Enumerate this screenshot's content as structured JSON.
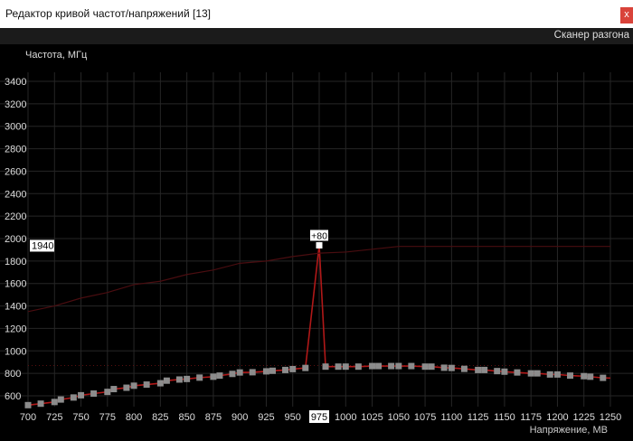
{
  "window": {
    "title": "Редактор кривой частот/напряжений [13]",
    "close_label": "x"
  },
  "toolbar": {
    "scanner_label": "Сканер разгона"
  },
  "chart_data": {
    "type": "line",
    "ylabel": "Частота, МГц",
    "xlabel": "Напряжение, МВ",
    "xlim": [
      700,
      1250
    ],
    "ylim": [
      600,
      3400
    ],
    "x_ticks": [
      700,
      725,
      750,
      775,
      800,
      825,
      850,
      875,
      900,
      925,
      950,
      975,
      1000,
      1025,
      1050,
      1075,
      1100,
      1125,
      1150,
      1175,
      1200,
      1225,
      1250
    ],
    "y_ticks": [
      600,
      800,
      1000,
      1200,
      1400,
      1600,
      1800,
      2000,
      2200,
      2400,
      2600,
      2800,
      3000,
      3200,
      3400
    ],
    "grid": true,
    "selected_point": {
      "x": 975,
      "y": 1940,
      "x_label": "975",
      "y_label": "1940",
      "offset_label": "+80"
    },
    "reference_line_y": 870,
    "series": [
      {
        "role": "curve",
        "color": "#b01818",
        "points": [
          [
            700,
            517
          ],
          [
            712,
            530
          ],
          [
            725,
            545
          ],
          [
            731,
            567
          ],
          [
            743,
            585
          ],
          [
            750,
            605
          ],
          [
            762,
            620
          ],
          [
            775,
            635
          ],
          [
            781,
            660
          ],
          [
            793,
            672
          ],
          [
            800,
            690
          ],
          [
            812,
            700
          ],
          [
            825,
            712
          ],
          [
            831,
            735
          ],
          [
            843,
            745
          ],
          [
            850,
            750
          ],
          [
            862,
            762
          ],
          [
            875,
            770
          ],
          [
            881,
            780
          ],
          [
            893,
            795
          ],
          [
            900,
            808
          ],
          [
            912,
            810
          ],
          [
            925,
            818
          ],
          [
            931,
            823
          ],
          [
            943,
            830
          ],
          [
            950,
            838
          ],
          [
            962,
            848
          ],
          [
            975,
            1940
          ],
          [
            981,
            860
          ],
          [
            993,
            860
          ],
          [
            1000,
            860
          ],
          [
            1012,
            860
          ],
          [
            1025,
            865
          ],
          [
            1031,
            865
          ],
          [
            1043,
            865
          ],
          [
            1050,
            865
          ],
          [
            1062,
            865
          ],
          [
            1075,
            860
          ],
          [
            1081,
            860
          ],
          [
            1093,
            850
          ],
          [
            1100,
            848
          ],
          [
            1112,
            840
          ],
          [
            1125,
            830
          ],
          [
            1131,
            830
          ],
          [
            1143,
            820
          ],
          [
            1150,
            815
          ],
          [
            1162,
            808
          ],
          [
            1175,
            800
          ],
          [
            1181,
            800
          ],
          [
            1193,
            790
          ],
          [
            1200,
            790
          ],
          [
            1212,
            780
          ],
          [
            1225,
            775
          ],
          [
            1231,
            770
          ],
          [
            1243,
            760
          ],
          [
            1250,
            758
          ]
        ]
      },
      {
        "role": "default-curve",
        "color": "#4a0d10",
        "points": [
          [
            700,
            1350
          ],
          [
            725,
            1400
          ],
          [
            750,
            1470
          ],
          [
            775,
            1520
          ],
          [
            800,
            1590
          ],
          [
            825,
            1620
          ],
          [
            850,
            1680
          ],
          [
            875,
            1720
          ],
          [
            900,
            1780
          ],
          [
            925,
            1800
          ],
          [
            950,
            1840
          ],
          [
            975,
            1870
          ],
          [
            1000,
            1880
          ],
          [
            1050,
            1930
          ],
          [
            1250,
            1930
          ]
        ]
      }
    ]
  }
}
